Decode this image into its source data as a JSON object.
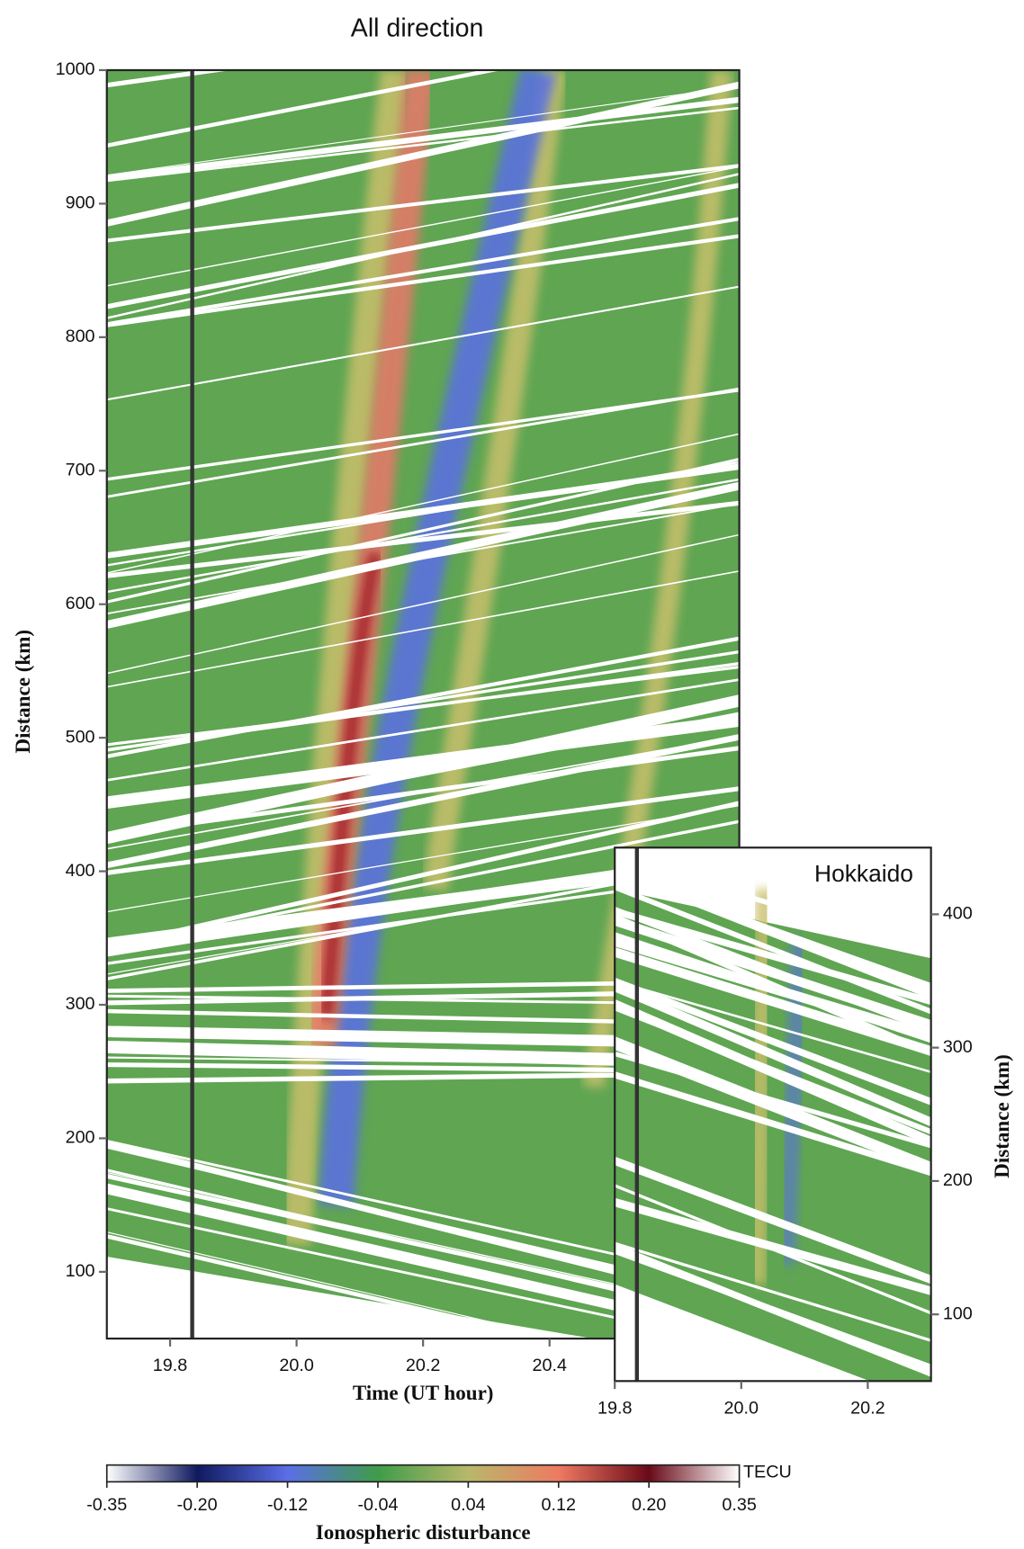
{
  "chart_data": [
    {
      "type": "heatmap",
      "title": "All direction",
      "x_label": "Time (UT hour)",
      "y_label": "Distance (km)",
      "xlim": [
        19.7,
        20.7
      ],
      "ylim": [
        50,
        1000
      ],
      "xticks": [
        {
          "value": 19.8,
          "label": "19.8"
        },
        {
          "value": 20.0,
          "label": "20.0"
        },
        {
          "value": 20.2,
          "label": "20.2"
        },
        {
          "value": 20.4,
          "label": "20.4"
        }
      ],
      "yticks": [
        100,
        200,
        300,
        400,
        500,
        600,
        700,
        800,
        900,
        1000
      ],
      "marker_x": 19.835,
      "colorbar": {
        "label": "Ionospheric disturbance",
        "unit": "TECU",
        "lim": [
          -0.35,
          0.35
        ],
        "ticks": [
          -0.35,
          {
            "value": -0.2,
            "label": "-0.20"
          },
          -0.12,
          -0.04,
          0.04,
          0.12,
          {
            "value": 0.2,
            "label": "0.20"
          },
          0.35
        ],
        "colors": [
          "#ffffff",
          "#101a60",
          "#5a6ee6",
          "#3f9c4a",
          "#b8b86a",
          "#ee7a62",
          "#6a0a18",
          "#ffffff"
        ]
      }
    },
    {
      "type": "heatmap",
      "annotation": "Hokkaido",
      "y_label": "Distance (km)",
      "xlim": [
        19.8,
        20.3
      ],
      "ylim": [
        50,
        450
      ],
      "xticks": [
        {
          "value": 19.8,
          "label": "19.8"
        },
        {
          "value": 20.0,
          "label": "20.0"
        },
        {
          "value": 20.2,
          "label": "20.2"
        }
      ],
      "yticks": [
        100,
        200,
        300,
        400
      ],
      "marker_x": 19.835
    }
  ]
}
